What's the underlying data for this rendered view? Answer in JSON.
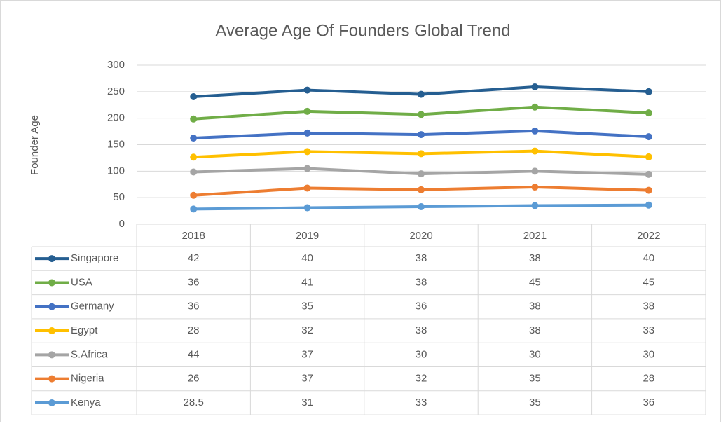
{
  "chart_data": {
    "type": "line",
    "stacked": true,
    "data_table": true,
    "title": "Average Age Of Founders Global Trend",
    "y_label": "Founder Age",
    "categories": [
      "2018",
      "2019",
      "2020",
      "2021",
      "2022"
    ],
    "series": [
      {
        "name": "Singapore",
        "color": "#255e91",
        "values": [
          42,
          40,
          38,
          38,
          40
        ]
      },
      {
        "name": "USA",
        "color": "#70ad47",
        "values": [
          36,
          41,
          38,
          45,
          45
        ]
      },
      {
        "name": "Germany",
        "color": "#4472c4",
        "values": [
          36,
          35,
          36,
          38,
          38
        ]
      },
      {
        "name": "Egypt",
        "color": "#ffc000",
        "values": [
          28,
          32,
          38,
          38,
          33
        ]
      },
      {
        "name": "S.Africa",
        "color": "#a5a5a5",
        "values": [
          44,
          37,
          30,
          30,
          30
        ]
      },
      {
        "name": "Nigeria",
        "color": "#ed7d31",
        "values": [
          26,
          37,
          32,
          35,
          28
        ]
      },
      {
        "name": "Kenya",
        "color": "#5b9bd5",
        "values": [
          28.5,
          31,
          33,
          35,
          36
        ]
      }
    ],
    "ylim": [
      0,
      300
    ],
    "yticks": [
      0,
      50,
      100,
      150,
      200,
      250,
      300
    ],
    "grid": true
  }
}
